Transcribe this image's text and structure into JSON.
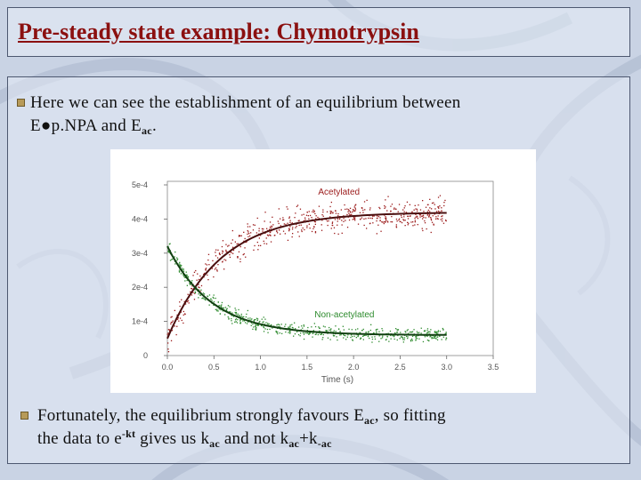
{
  "slide": {
    "title": "Pre-steady state example: Chymotrypsin",
    "bullet1": {
      "line1": "Here we can see the establishment of an equilibrium between",
      "line2_prefix": "E●p.NPA and E",
      "line2_sub": "ac",
      "line2_suffix": "."
    },
    "bullet2": {
      "line1_prefix": "Fortunately, the equilibrium strongly favours E",
      "line1_sub": "ac",
      "line1_suffix": ", so fitting",
      "line2_prefix": "the data to e",
      "line2_sup": "-kt",
      "line2_mid": " gives us k",
      "line2_sub1": "ac",
      "line2_mid2": " and not k",
      "line2_sub2": "ac",
      "line2_mid3": "+k",
      "line2_sub3": "-ac"
    }
  },
  "chart_data": {
    "type": "scatter",
    "xlabel": "Time (s)",
    "ylabel": "",
    "x_ticks": [
      "0.0",
      "0.5",
      "1.0",
      "1.5",
      "2.0",
      "2.5",
      "3.0",
      "3.5"
    ],
    "y_ticks": [
      "0",
      "1e-4",
      "2e-4",
      "3e-4",
      "4e-4",
      "5e-4"
    ],
    "xlim": [
      0,
      3.5
    ],
    "ylim": [
      0,
      0.0005
    ],
    "series": [
      {
        "name": "Acetylated",
        "color": "#9b1a1a",
        "fit_color": "#4a0f0f",
        "fit_model": "exponential_rise",
        "fit_params": {
          "A": 0.00042,
          "B": 0.00037,
          "k": 1.75
        },
        "x_range": [
          0.0,
          3.0
        ],
        "noise": 2.2e-05
      },
      {
        "name": "Non-acetylated",
        "color": "#2e8b2e",
        "fit_color": "#124012",
        "fit_model": "exponential_decay",
        "fit_params": {
          "A": 6e-05,
          "B": 0.00026,
          "k": 2.1
        },
        "x_range": [
          0.0,
          3.0
        ],
        "noise": 1e-05
      }
    ],
    "legend": "inline-labels",
    "grid": false
  }
}
